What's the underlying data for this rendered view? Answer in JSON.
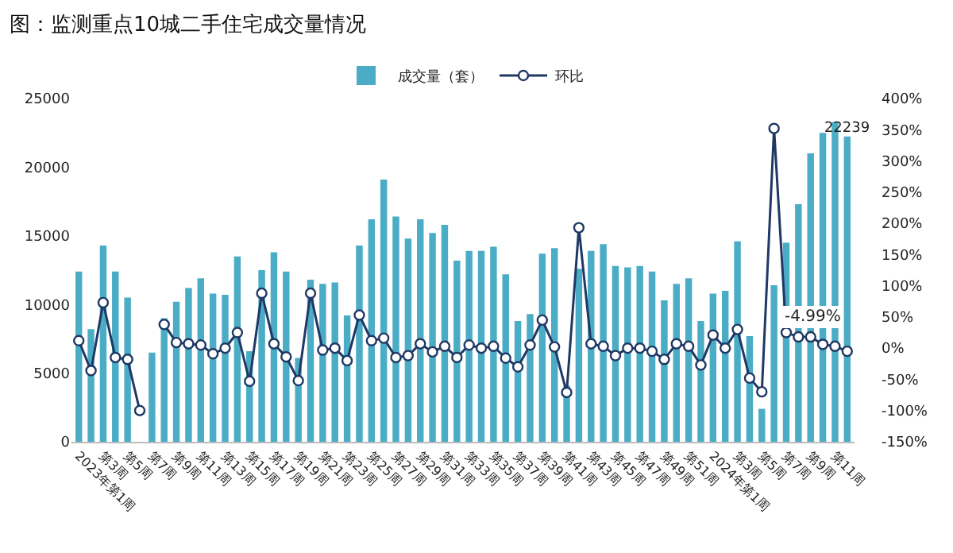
{
  "chart_data": {
    "type": "bar",
    "title": "图：监测重点10城二手住宅成交量情况",
    "categories": [
      "2023年第1周",
      null,
      "第3周",
      null,
      "第5周",
      null,
      "第7周",
      null,
      "第9周",
      null,
      "第11周",
      null,
      "第13周",
      null,
      "第15周",
      null,
      "第17周",
      null,
      "第19周",
      null,
      "第21周",
      null,
      "第23周",
      null,
      "第25周",
      null,
      "第27周",
      null,
      "第29周",
      null,
      "第31周",
      null,
      "第33周",
      null,
      "第35周",
      null,
      "第37周",
      null,
      "第39周",
      null,
      "第41周",
      null,
      "第43周",
      null,
      "第45周",
      null,
      "第47周",
      null,
      "第49周",
      null,
      "第51周",
      null,
      "2024年第1周",
      null,
      "第3周",
      null,
      "第5周",
      null,
      "第7周",
      null,
      "第9周",
      null,
      "第11周",
      null
    ],
    "series": [
      {
        "name": "成交量（套）",
        "color": "#4bacc6",
        "values": [
          12400,
          8200,
          14300,
          12400,
          10500,
          0,
          6500,
          9000,
          10200,
          11200,
          11900,
          10800,
          10700,
          13500,
          6600,
          12500,
          13800,
          12400,
          6100,
          11800,
          11500,
          11600,
          9200,
          14300,
          16200,
          19100,
          16400,
          14800,
          16200,
          15200,
          15800,
          13200,
          13900,
          13900,
          14200,
          12200,
          8800,
          9300,
          13700,
          14100,
          4100,
          12600,
          13900,
          14400,
          12800,
          12700,
          12800,
          12400,
          10300,
          11500,
          11900,
          8800,
          10800,
          11000,
          14600,
          7700,
          2400,
          11400,
          14500,
          17300,
          21000,
          22500,
          23300,
          22239
        ],
        "value_labels": [
          null,
          null,
          null,
          null,
          null,
          null,
          null,
          null,
          null,
          null,
          null,
          null,
          null,
          null,
          null,
          null,
          null,
          null,
          null,
          null,
          null,
          null,
          null,
          null,
          null,
          null,
          null,
          null,
          null,
          null,
          null,
          null,
          null,
          null,
          null,
          null,
          null,
          null,
          null,
          null,
          null,
          null,
          null,
          null,
          null,
          null,
          null,
          null,
          null,
          null,
          null,
          null,
          null,
          null,
          null,
          null,
          null,
          null,
          null,
          null,
          null,
          null,
          null,
          "22239"
        ]
      },
      {
        "name": "环比",
        "type": "line",
        "axis": "y2",
        "color": "#1f3864",
        "values": [
          12,
          -36,
          73,
          -15,
          -18,
          -100,
          null,
          38,
          9,
          7,
          5,
          -9,
          0,
          25,
          -53,
          88,
          7,
          -14,
          -52,
          88,
          -3,
          0,
          -20,
          53,
          12,
          16,
          -15,
          -12,
          7,
          -6,
          3,
          -15,
          5,
          0,
          3,
          -16,
          -30,
          5,
          45,
          2,
          -71,
          193,
          7,
          3,
          -12,
          0,
          0,
          -5,
          -18,
          7,
          3,
          -27,
          21,
          0,
          30,
          -48,
          -70,
          352,
          25,
          18,
          18,
          6,
          3,
          -4.99
        ],
        "value_labels": [
          null,
          null,
          null,
          null,
          null,
          null,
          null,
          null,
          null,
          null,
          null,
          null,
          null,
          null,
          null,
          null,
          null,
          null,
          null,
          null,
          null,
          null,
          null,
          null,
          null,
          null,
          null,
          null,
          null,
          null,
          null,
          null,
          null,
          null,
          null,
          null,
          null,
          null,
          null,
          null,
          null,
          null,
          null,
          null,
          null,
          null,
          null,
          null,
          null,
          null,
          null,
          null,
          null,
          null,
          null,
          null,
          null,
          null,
          null,
          null,
          null,
          null,
          null,
          "-4.99%"
        ]
      }
    ],
    "ylim": [
      0,
      25000
    ],
    "yticks": [
      0,
      5000,
      10000,
      15000,
      20000,
      25000
    ],
    "y2lim": [
      -150,
      400
    ],
    "y2ticks": [
      {
        "value": -150,
        "label": "-150%"
      },
      {
        "value": -100,
        "label": "-100%"
      },
      {
        "value": -50,
        "label": "-50%"
      },
      {
        "value": 0,
        "label": "0%"
      },
      {
        "value": 50,
        "label": "50%"
      },
      {
        "value": 100,
        "label": "100%"
      },
      {
        "value": 150,
        "label": "150%"
      },
      {
        "value": 200,
        "label": "200%"
      },
      {
        "value": 250,
        "label": "250%"
      },
      {
        "value": 300,
        "label": "300%"
      },
      {
        "value": 350,
        "label": "350%"
      },
      {
        "value": 400,
        "label": "400%"
      }
    ],
    "grid": false,
    "legend": "top",
    "marker": "circle",
    "line_style": "solid"
  }
}
